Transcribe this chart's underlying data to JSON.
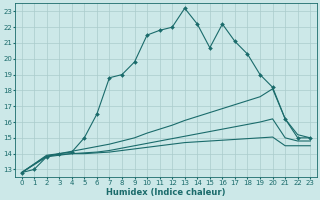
{
  "title": "",
  "xlabel": "Humidex (Indice chaleur)",
  "bg_color": "#cce8e8",
  "grid_color": "#aacccc",
  "line_color": "#1a6b6b",
  "xlim": [
    -0.5,
    23.5
  ],
  "ylim": [
    12.5,
    23.5
  ],
  "xticks": [
    0,
    1,
    2,
    3,
    4,
    5,
    6,
    7,
    8,
    9,
    10,
    11,
    12,
    13,
    14,
    15,
    16,
    17,
    18,
    19,
    20,
    21,
    22,
    23
  ],
  "yticks": [
    13,
    14,
    15,
    16,
    17,
    18,
    19,
    20,
    21,
    22,
    23
  ],
  "line1_x": [
    0,
    1,
    2,
    3,
    4,
    5,
    6,
    7,
    8,
    9,
    10,
    11,
    12,
    13,
    14,
    15,
    16,
    17,
    18,
    19,
    20,
    21,
    22,
    23
  ],
  "line1_y": [
    12.8,
    13.0,
    13.8,
    14.0,
    14.1,
    15.0,
    16.5,
    18.8,
    19.0,
    19.8,
    21.5,
    21.8,
    22.0,
    23.2,
    22.2,
    20.7,
    22.2,
    21.1,
    20.3,
    19.0,
    18.2,
    16.2,
    15.0,
    15.0
  ],
  "line2_x": [
    0,
    2,
    3,
    4,
    5,
    6,
    7,
    8,
    9,
    10,
    11,
    12,
    13,
    14,
    15,
    16,
    17,
    18,
    19,
    20,
    21,
    22,
    23
  ],
  "line2_y": [
    12.8,
    13.9,
    14.0,
    14.15,
    14.3,
    14.45,
    14.6,
    14.8,
    15.0,
    15.3,
    15.55,
    15.8,
    16.1,
    16.35,
    16.6,
    16.85,
    17.1,
    17.35,
    17.6,
    18.1,
    16.2,
    15.2,
    15.0
  ],
  "line3_x": [
    0,
    2,
    3,
    4,
    5,
    6,
    7,
    8,
    9,
    10,
    11,
    12,
    13,
    14,
    15,
    16,
    17,
    18,
    19,
    20,
    21,
    22,
    23
  ],
  "line3_y": [
    12.8,
    13.85,
    13.95,
    14.0,
    14.05,
    14.1,
    14.2,
    14.35,
    14.5,
    14.65,
    14.8,
    14.95,
    15.1,
    15.25,
    15.4,
    15.55,
    15.7,
    15.85,
    16.0,
    16.2,
    15.0,
    14.8,
    14.8
  ],
  "line4_x": [
    0,
    2,
    3,
    4,
    5,
    6,
    7,
    8,
    9,
    10,
    11,
    12,
    13,
    14,
    15,
    16,
    17,
    18,
    19,
    20,
    21,
    22,
    23
  ],
  "line4_y": [
    12.8,
    13.8,
    13.9,
    14.0,
    14.0,
    14.05,
    14.1,
    14.2,
    14.3,
    14.4,
    14.5,
    14.6,
    14.7,
    14.75,
    14.8,
    14.85,
    14.9,
    14.95,
    15.0,
    15.05,
    14.5,
    14.5,
    14.5
  ]
}
